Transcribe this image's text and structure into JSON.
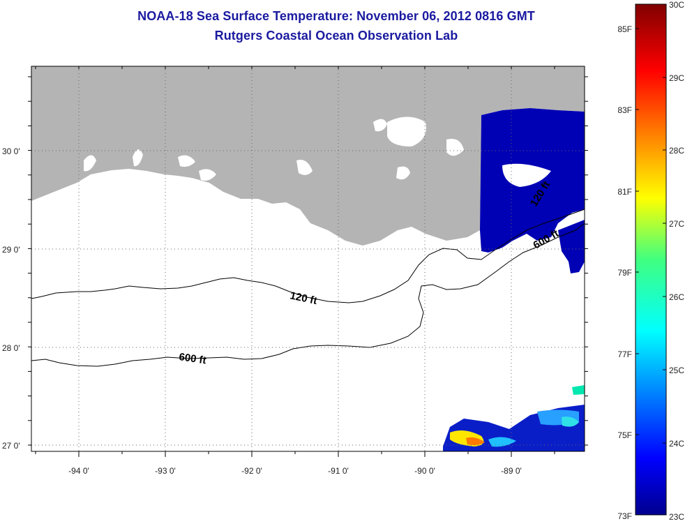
{
  "header": {
    "title": "NOAA-18 Sea Surface Temperature:  November 06, 2012 0816 GMT",
    "subtitle": "Rutgers Coastal Ocean Observation Lab"
  },
  "map": {
    "lon_labels": [
      "-94 0'",
      "-93 0'",
      "-92 0'",
      "-91 0'",
      "-90 0'",
      "-89 0'"
    ],
    "lat_labels": [
      "30 0'",
      "29 0'",
      "28 0'",
      "27 0'"
    ],
    "contour_labels": [
      "120 ft",
      "600 ft"
    ],
    "land_color": "#b4b4b4",
    "no_data_color": "#ffffff"
  },
  "colorbar": {
    "fahrenheit_labels": [
      "85F",
      "83F",
      "81F",
      "79F",
      "77F",
      "75F",
      "73F"
    ],
    "celsius_labels": [
      "30C",
      "29C",
      "28C",
      "27C",
      "26C",
      "25C",
      "24C",
      "23C"
    ],
    "colormap": "jet",
    "range_c": [
      23,
      30
    ]
  }
}
